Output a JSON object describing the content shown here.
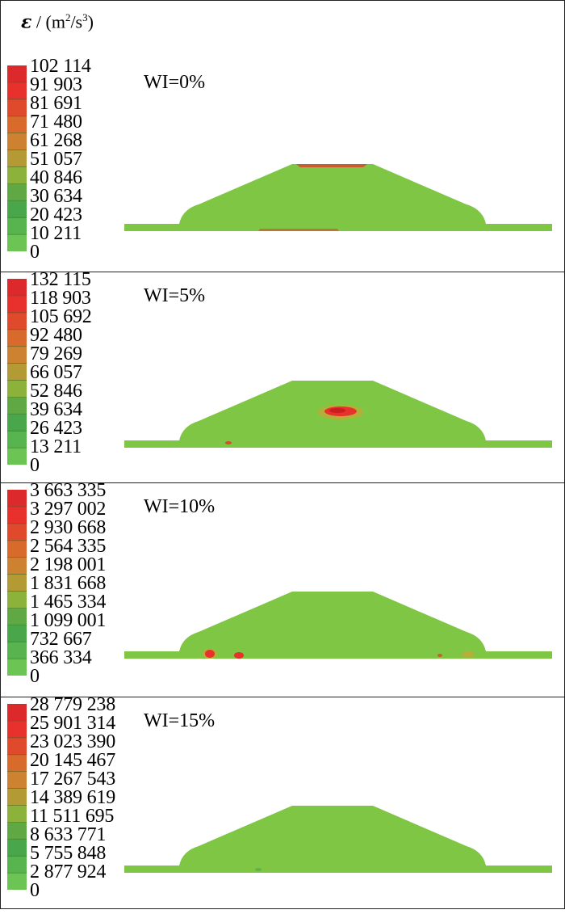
{
  "header": {
    "symbol": "ε",
    "units_prefix": " / (m",
    "units_mid": "/s",
    "units_suffix": ")",
    "exp2": "2",
    "exp3": "3"
  },
  "colorbar": {
    "colors": [
      "#6cc454",
      "#58b44e",
      "#4aa64a",
      "#5fa844",
      "#8cb23c",
      "#b49a34",
      "#cc8230",
      "#d86a2c",
      "#e04a2c",
      "#e8302c",
      "#dc2a2c"
    ],
    "field_color": "#7ec644"
  },
  "panels": [
    {
      "label": "WI=0%",
      "ticks": [
        "102 114",
        "91 903",
        "81 691",
        "71 480",
        "61 268",
        "51 057",
        "40 846",
        "30 634",
        "20 423",
        "10 211",
        "0"
      ]
    },
    {
      "label": "WI=5%",
      "ticks": [
        "132 115",
        "118 903",
        "105 692",
        "92 480",
        "79 269",
        "66 057",
        "52 846",
        "39 634",
        "26 423",
        "13 211",
        "0"
      ]
    },
    {
      "label": "WI=10%",
      "ticks": [
        "3 663 335",
        "3 297 002",
        "2 930 668",
        "2 564 335",
        "2 198 001",
        "1 831 668",
        "1 465 334",
        "1 099 001",
        "732 667",
        "366 334",
        "0"
      ]
    },
    {
      "label": "WI=15%",
      "ticks": [
        "28 779 238",
        "25 901 314",
        "23 023 390",
        "20 145 467",
        "17 267 543",
        "14 389 619",
        "11 511 695",
        "8 633 771",
        "5 755 848",
        "2 877 924",
        "0"
      ]
    }
  ]
}
